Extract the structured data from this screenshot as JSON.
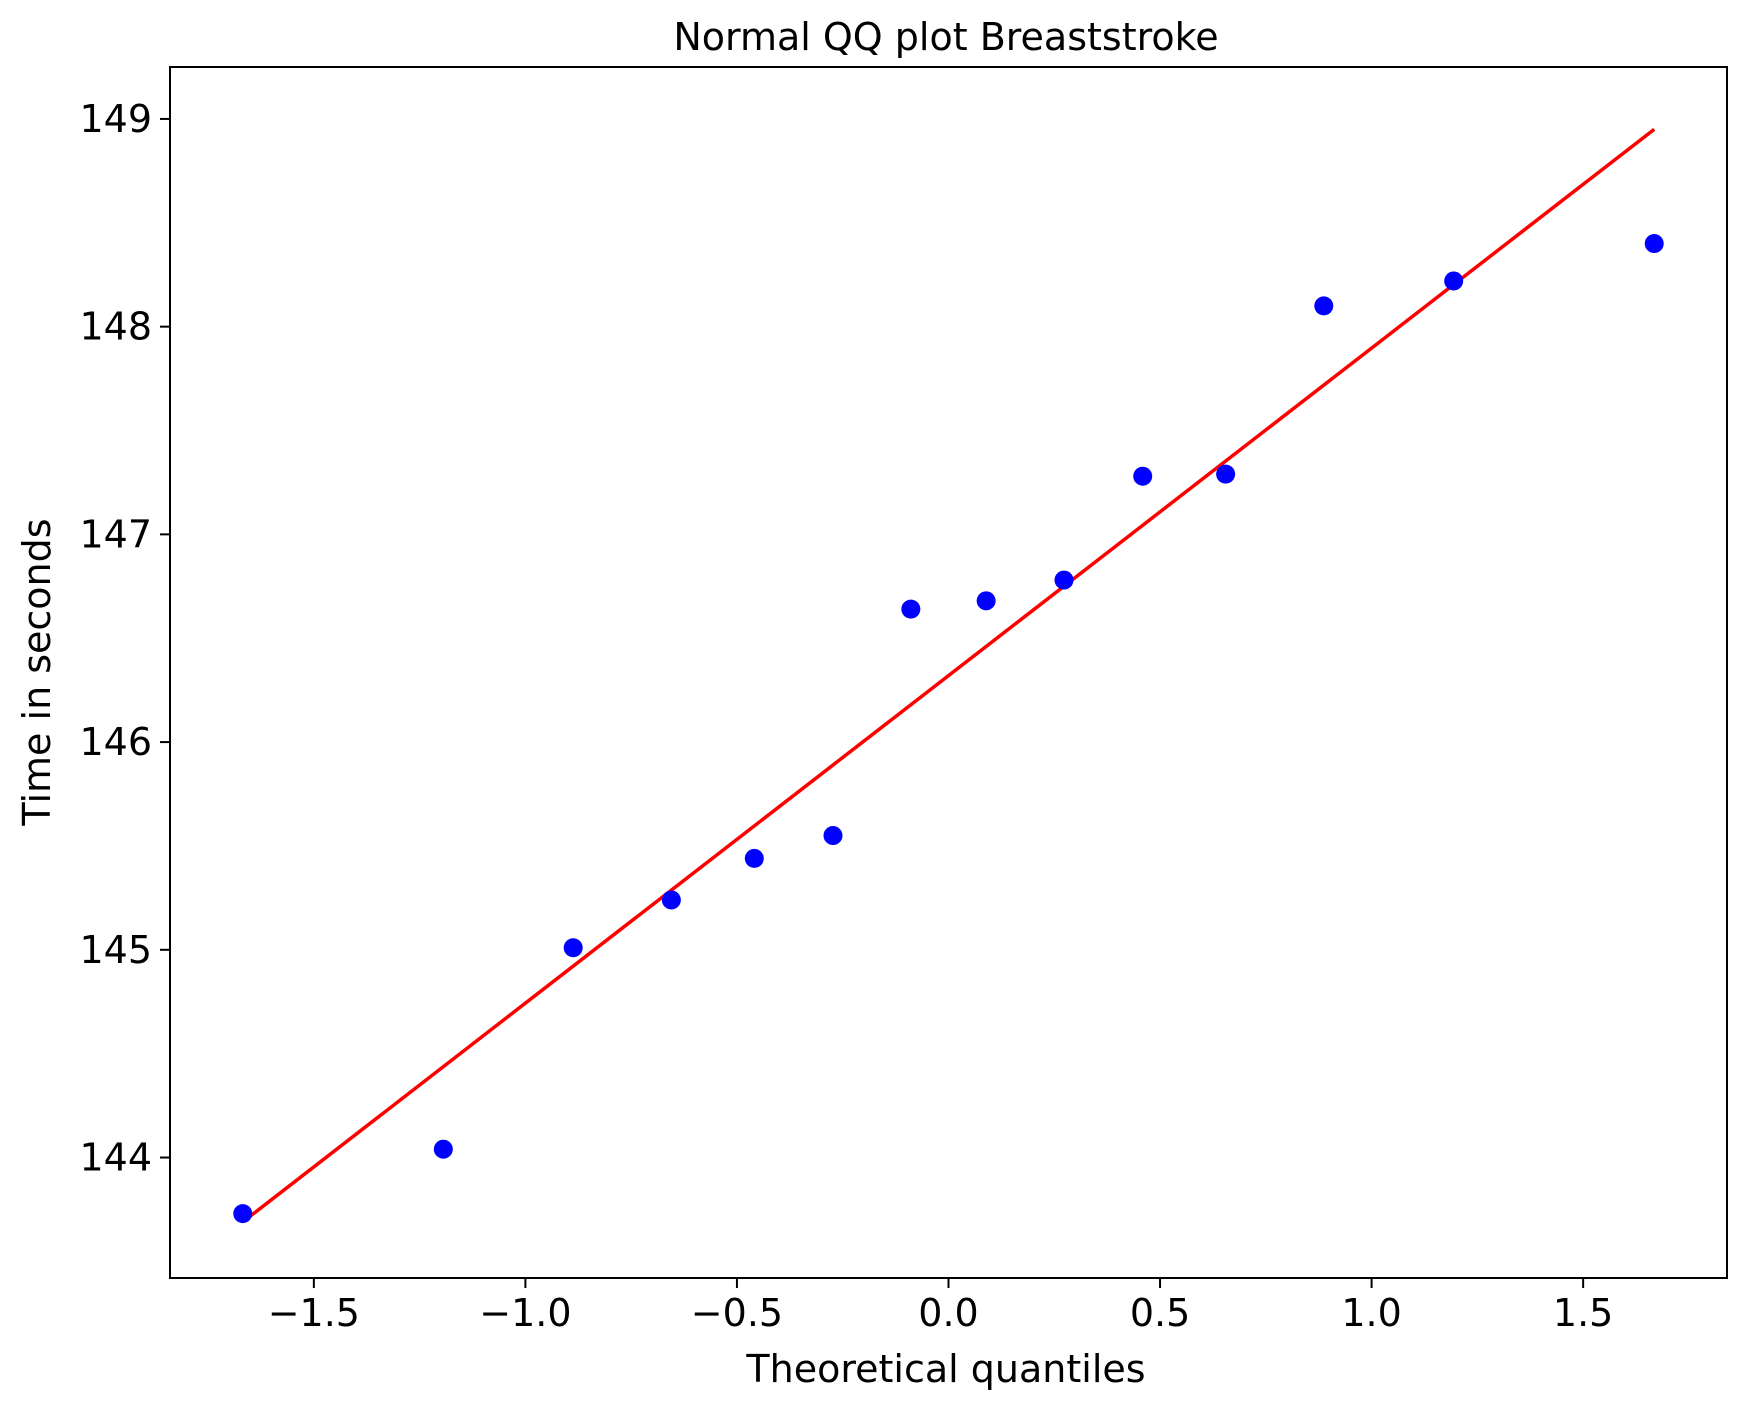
{
  "chart_data": {
    "type": "scatter",
    "title": "Normal QQ plot Breaststroke",
    "xlabel": "Theoretical quantiles",
    "ylabel": "Time in seconds",
    "xlim": [
      -1.84,
      1.84
    ],
    "ylim": [
      143.42,
      149.25
    ],
    "grid": false,
    "legend": "none",
    "x_ticks": [
      -1.5,
      -1.0,
      -0.5,
      0.0,
      0.5,
      1.0,
      1.5
    ],
    "x_tick_labels": [
      "−1.5",
      "−1.0",
      "−0.5",
      "0.0",
      "0.5",
      "1.0",
      "1.5"
    ],
    "y_ticks": [
      144,
      145,
      146,
      147,
      148,
      149
    ],
    "y_tick_labels": [
      "144",
      "145",
      "146",
      "147",
      "148",
      "149"
    ],
    "series": [
      {
        "type": "scatter",
        "color": "#0000ff",
        "x": [
          -1.668,
          -1.194,
          -0.887,
          -0.655,
          -0.459,
          -0.273,
          -0.089,
          0.089,
          0.273,
          0.459,
          0.655,
          0.887,
          1.194,
          1.668
        ],
        "y": [
          143.73,
          144.04,
          145.01,
          145.24,
          145.44,
          145.55,
          146.64,
          146.68,
          146.78,
          147.28,
          147.29,
          148.1,
          148.22,
          148.4
        ]
      },
      {
        "type": "line",
        "color": "#ff0000",
        "x": [
          -1.668,
          1.668
        ],
        "y": [
          143.69,
          148.95
        ]
      }
    ]
  }
}
